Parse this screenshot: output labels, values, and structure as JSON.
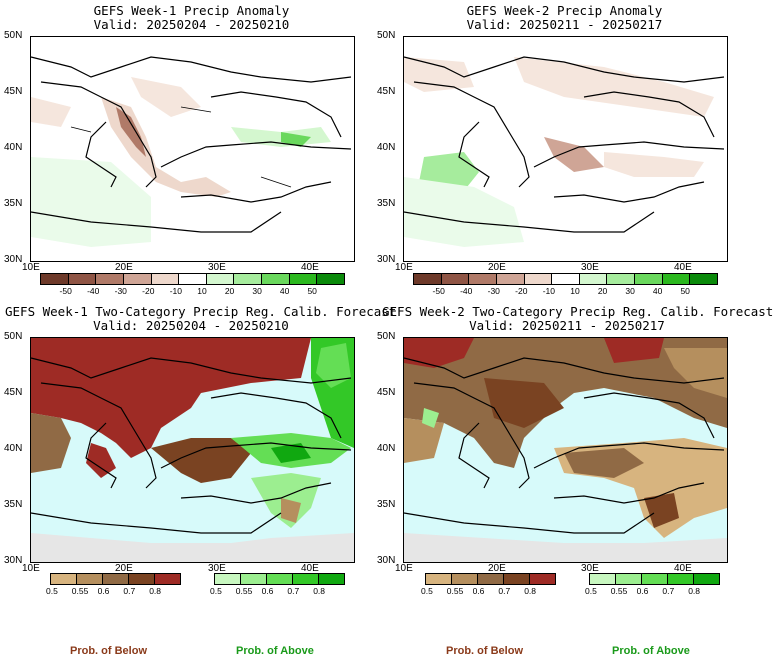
{
  "panels": [
    {
      "title1": "GEFS Week-1 Precip Anomaly",
      "title2": "Valid: 20250204 - 20250210"
    },
    {
      "title1": "GEFS Week-2 Precip Anomaly",
      "title2": "Valid: 20250211 - 20250217"
    },
    {
      "title1": "GEFS Week-1 Two-Category Precip Reg. Calib. Forecast",
      "title2": "Valid: 20250204 - 20250210"
    },
    {
      "title1": "GEFS Week-2 Two-Category Precip Reg. Calib. Forecast",
      "title2": "Valid: 20250211 - 20250217"
    }
  ],
  "lat_ticks": [
    "50N",
    "45N",
    "40N",
    "35N",
    "30N"
  ],
  "lon_ticks": [
    "10E",
    "20E",
    "30E",
    "40E"
  ],
  "anomaly_colorbar": {
    "labels": [
      "-50",
      "-40",
      "-30",
      "-20",
      "-10",
      "10",
      "20",
      "30",
      "40",
      "50"
    ],
    "colors": [
      "#6e3a2a",
      "#8f5545",
      "#b07a68",
      "#cfa596",
      "#eed8cc",
      "#ffffff",
      "#d4f7cf",
      "#a6ec9d",
      "#6ad85d",
      "#2bb81e",
      "#0a8a0a"
    ]
  },
  "prob_below": {
    "labels": [
      "0.5",
      "0.55",
      "0.6",
      "0.7",
      "0.8"
    ],
    "colors": [
      "#d7b47f",
      "#b58f5e",
      "#906a45",
      "#7a4322",
      "#9e2b25"
    ],
    "caption": "Prob. of Below"
  },
  "prob_above": {
    "labels": [
      "0.5",
      "0.55",
      "0.6",
      "0.7",
      "0.8"
    ],
    "colors": [
      "#c8f7c0",
      "#9cee90",
      "#64de55",
      "#33c827",
      "#10a810"
    ],
    "caption": "Prob. of Above"
  },
  "colors": {
    "sea": "#d7fafa",
    "caption_below": "#8a3a1a",
    "caption_above": "#1a9a1a",
    "nodata": "#e6e6e6"
  }
}
